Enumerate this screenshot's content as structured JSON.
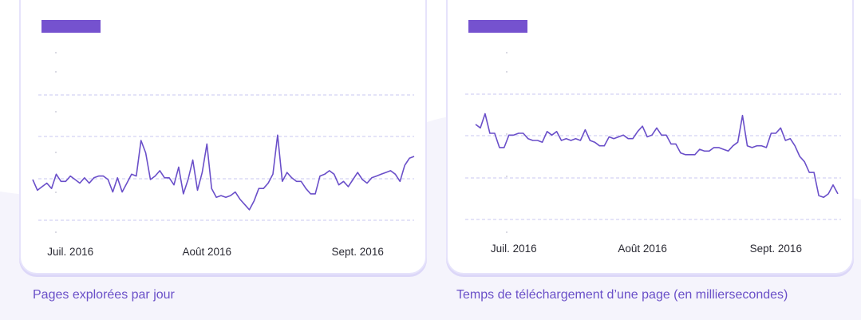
{
  "colors": {
    "line": "#6a4fc9",
    "accent_bar": "#7552cf",
    "grid": "#c9c7f2",
    "caption": "#6a50c8",
    "panel_border": "#e6e3fb",
    "background_wave": "#f3f2fb"
  },
  "chart_data": [
    {
      "type": "line",
      "title": "",
      "caption": "Pages explorées par jour",
      "xlabel": "",
      "ylabel": "",
      "x_ticks": [
        "Juil. 2016",
        "Août 2016",
        "Sept. 2016"
      ],
      "x_tick_index": [
        8,
        37,
        69
      ],
      "ylim": [
        0,
        100
      ],
      "grid": "horizontal dashed",
      "series": [
        {
          "values": [
            26,
            20,
            22,
            24,
            21,
            29,
            25,
            25,
            28,
            26,
            24,
            27,
            24,
            27,
            28,
            28,
            26,
            19,
            27,
            19,
            24,
            29,
            28,
            48,
            41,
            26,
            28,
            31,
            27,
            27,
            23,
            33,
            18,
            26,
            37,
            20,
            30,
            46,
            21,
            16,
            17,
            16,
            17,
            19,
            15,
            12,
            9,
            14,
            21,
            21,
            24,
            29,
            51,
            25,
            30,
            27,
            25,
            25,
            21,
            18,
            18,
            28,
            29,
            31,
            29,
            23,
            25,
            22,
            26,
            30,
            26,
            24,
            27,
            28,
            29,
            30,
            31,
            29,
            25,
            34,
            38,
            39
          ]
        }
      ]
    },
    {
      "type": "line",
      "title": "",
      "caption": "Temps de téléchargement d’une page (en milliersecondes)",
      "xlabel": "",
      "ylabel": "",
      "x_ticks": [
        "Juil. 2016",
        "Août 2016",
        "Sept. 2016"
      ],
      "x_tick_index": [
        8,
        35,
        63
      ],
      "ylim": [
        0,
        100
      ],
      "grid": "horizontal dashed",
      "series": [
        {
          "values": [
            57,
            55,
            63,
            52,
            52,
            44,
            44,
            51,
            51,
            52,
            52,
            49,
            48,
            48,
            47,
            53,
            51,
            53,
            48,
            49,
            48,
            49,
            48,
            54,
            48,
            47,
            45,
            45,
            50,
            49,
            50,
            51,
            49,
            49,
            53,
            56,
            50,
            51,
            55,
            51,
            51,
            46,
            46,
            41,
            40,
            40,
            40,
            43,
            42,
            42,
            44,
            44,
            43,
            42,
            45,
            47,
            62,
            45,
            44,
            45,
            45,
            44,
            52,
            52,
            55,
            48,
            49,
            45,
            39,
            36,
            30,
            30,
            17,
            16,
            18,
            23,
            18
          ]
        }
      ]
    }
  ]
}
